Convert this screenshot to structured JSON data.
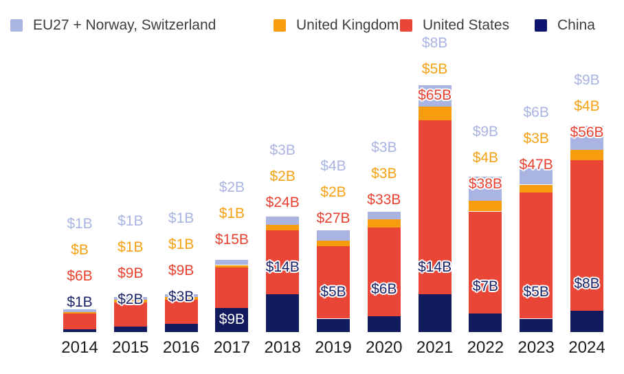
{
  "legend": [
    {
      "label": "EU27 + Norway, Switzerland",
      "color": "#A9B4E2"
    },
    {
      "label": "United Kingdom",
      "color": "#F79D0E"
    },
    {
      "label": "United States",
      "color": "#E94638"
    },
    {
      "label": "China",
      "color": "#0E1570"
    }
  ],
  "chart_data": {
    "type": "bar",
    "stacked": true,
    "unit": "billions of USD",
    "categories": [
      "2014",
      "2015",
      "2016",
      "2017",
      "2018",
      "2019",
      "2020",
      "2021",
      "2022",
      "2023",
      "2024"
    ],
    "series": [
      {
        "key": "china",
        "name": "China",
        "color": "#121B5E",
        "label_color": "#1B2468",
        "values": [
          1,
          2,
          3,
          9,
          14,
          5,
          6,
          14,
          7,
          5,
          8
        ],
        "labels": [
          "$1B",
          "$2B",
          "$3B",
          "$9B",
          "$14B",
          "$5B",
          "$6B",
          "$14B",
          "$7B",
          "$5B",
          "$8B"
        ]
      },
      {
        "key": "us",
        "name": "United States",
        "color": "#E94638",
        "label_color": "#E94130",
        "values": [
          6,
          9,
          9,
          15,
          24,
          27,
          33,
          65,
          38,
          47,
          56
        ],
        "labels": [
          "$6B",
          "$9B",
          "$9B",
          "$15B",
          "$24B",
          "$27B",
          "$33B",
          "$65B",
          "$38B",
          "$47B",
          "$56B"
        ]
      },
      {
        "key": "uk",
        "name": "United Kingdom",
        "color": "#F79D0E",
        "label_color": "#F6A113",
        "values": [
          0.4,
          1,
          1,
          1,
          2,
          2,
          3,
          5,
          4,
          3,
          4
        ],
        "labels": [
          "$B",
          "$1B",
          "$1B",
          "$1B",
          "$2B",
          "$2B",
          "$3B",
          "$5B",
          "$4B",
          "$3B",
          "$4B"
        ]
      },
      {
        "key": "eu",
        "name": "EU27 + Norway, Switzerland",
        "color": "#A9B4E2",
        "label_color": "#A9B4E2",
        "values": [
          1,
          1,
          1,
          2,
          3,
          4,
          3,
          8,
          9,
          6,
          9
        ],
        "labels": [
          "$1B",
          "$1B",
          "$1B",
          "$2B",
          "$3B",
          "$4B",
          "$3B",
          "$8B",
          "$9B",
          "$6B",
          "$9B"
        ]
      }
    ],
    "legend_position": "top",
    "grid": false,
    "axis_lines": false,
    "china_label_inside_years": [
      "2017"
    ]
  }
}
